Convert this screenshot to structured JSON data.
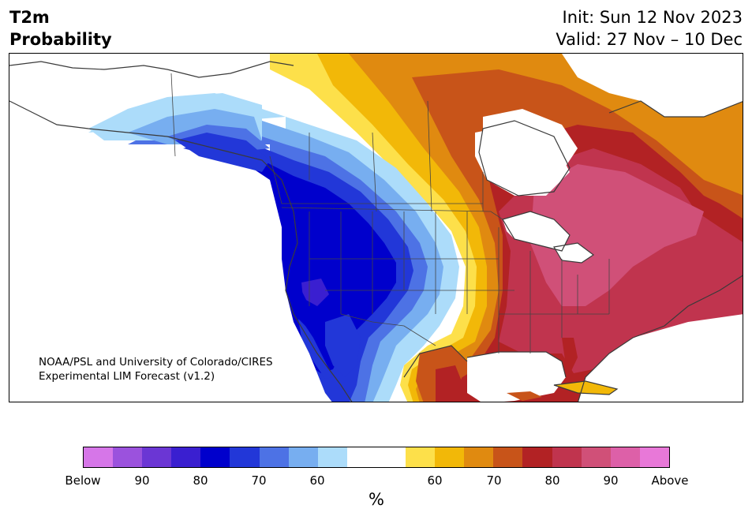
{
  "title": {
    "left_line1": "T2m",
    "left_line2": "Probability",
    "right_line1": "Init: Sun 12 Nov 2023",
    "right_line2": "Valid: 27 Nov – 10 Dec"
  },
  "credit": {
    "line1": "NOAA/PSL and University of Colorado/CIRES",
    "line2": "Experimental LIM Forecast (v1.2)"
  },
  "colorbar": {
    "below_colors": [
      "#d676e8",
      "#9b52dd",
      "#6b36d4",
      "#3a1fd0",
      "#0000cc",
      "#2237d8",
      "#4d72e5",
      "#77aef0",
      "#acdcfa"
    ],
    "neutral_color": "#ffffff",
    "above_colors": [
      "#fde04a",
      "#f2b808",
      "#e08a10",
      "#c85419",
      "#b22224",
      "#c0344e",
      "#d05078",
      "#dd60a8",
      "#e878d8"
    ],
    "tick_labels": [
      "Below",
      "90",
      "80",
      "70",
      "60",
      "60",
      "70",
      "80",
      "90",
      "Above"
    ],
    "unit": "%"
  },
  "map": {
    "region": "North America",
    "cold_region": "Western North America (Alaska to Mexico) — below normal",
    "warm_region": "Central/Eastern North America — above normal"
  }
}
